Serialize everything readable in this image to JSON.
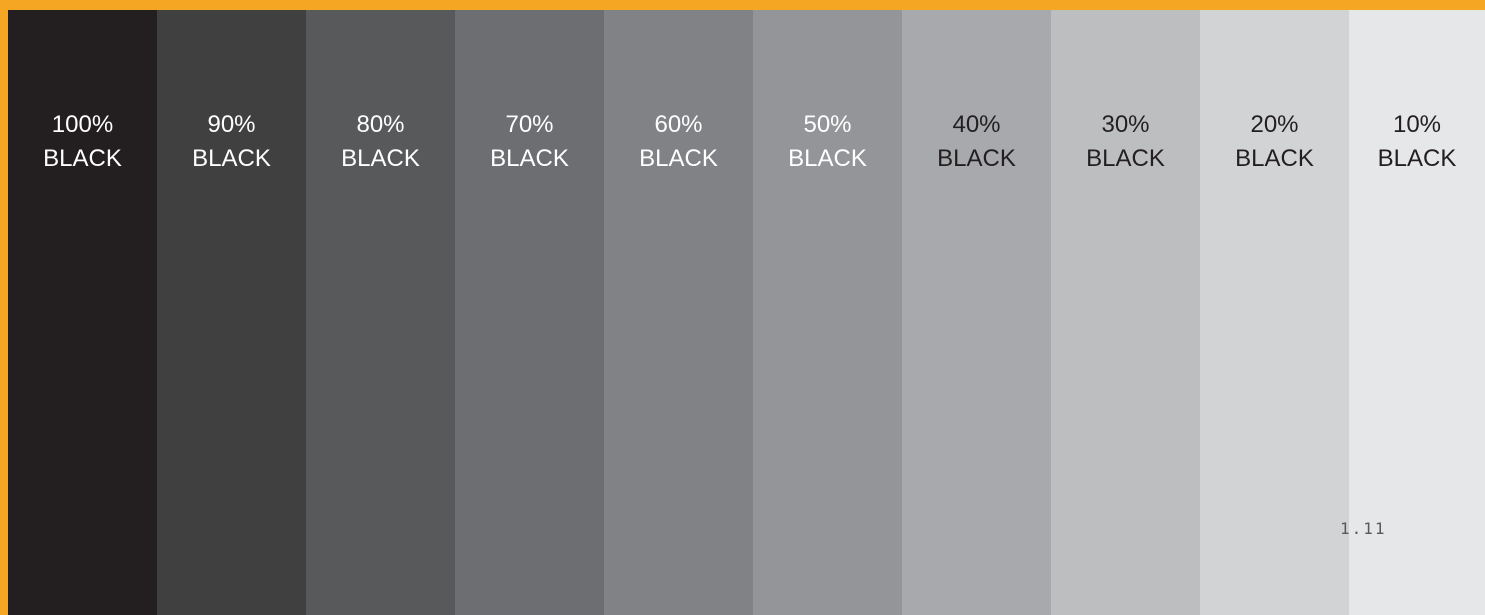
{
  "swatches": [
    {
      "percent": "100%",
      "word": "BLACK",
      "color": "#231f20",
      "text_color": "#ffffff"
    },
    {
      "percent": "90%",
      "word": "BLACK",
      "color": "#404041",
      "text_color": "#ffffff"
    },
    {
      "percent": "80%",
      "word": "BLACK",
      "color": "#58595b",
      "text_color": "#ffffff"
    },
    {
      "percent": "70%",
      "word": "BLACK",
      "color": "#6d6e71",
      "text_color": "#ffffff"
    },
    {
      "percent": "60%",
      "word": "BLACK",
      "color": "#808285",
      "text_color": "#ffffff"
    },
    {
      "percent": "50%",
      "word": "BLACK",
      "color": "#939598",
      "text_color": "#ffffff"
    },
    {
      "percent": "40%",
      "word": "BLACK",
      "color": "#a7a9ac",
      "text_color": "#231f20"
    },
    {
      "percent": "30%",
      "word": "BLACK",
      "color": "#bcbec0",
      "text_color": "#231f20"
    },
    {
      "percent": "20%",
      "word": "BLACK",
      "color": "#d1d3d4",
      "text_color": "#231f20"
    },
    {
      "percent": "10%",
      "word": "BLACK",
      "color": "#e6e7e8",
      "text_color": "#231f20"
    }
  ],
  "page_number": "1.11",
  "frame_color": "#f5a623"
}
